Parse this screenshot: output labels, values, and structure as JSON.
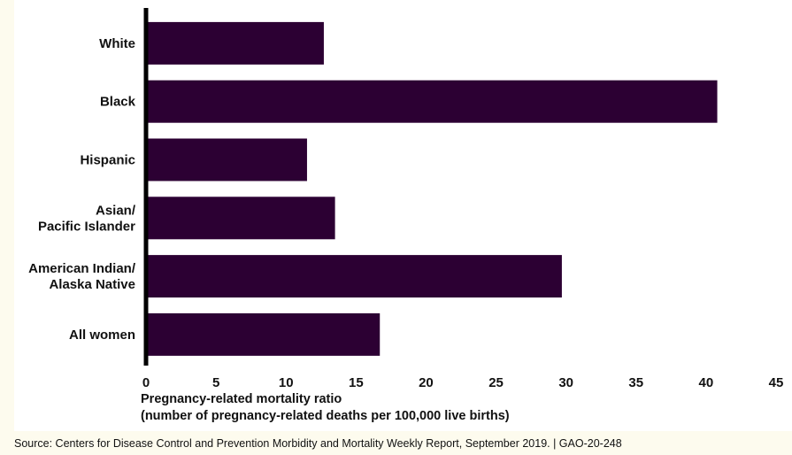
{
  "colors": {
    "bar": "#2c0033",
    "axis": "#000000",
    "background": "#ffffff",
    "outer_background": "#fdfbee"
  },
  "chart_data": {
    "type": "bar",
    "orientation": "horizontal",
    "categories": [
      [
        "White"
      ],
      [
        "Black"
      ],
      [
        "Hispanic"
      ],
      [
        "Asian/",
        "Pacific Islander"
      ],
      [
        "American Indian/",
        "Alaska Native"
      ],
      [
        "All women"
      ]
    ],
    "values": [
      12.7,
      40.8,
      11.5,
      13.5,
      29.7,
      16.7
    ],
    "xlim": [
      0,
      45
    ],
    "xticks": [
      0,
      5,
      10,
      15,
      20,
      25,
      30,
      35,
      40,
      45
    ],
    "xlabel_line1": "Pregnancy-related mortality ratio",
    "xlabel_line2": "(number of pregnancy-related deaths per 100,000 live births)",
    "grid": false,
    "legend": "none"
  },
  "source": "Source: Centers for Disease Control and Prevention Morbidity and Mortality Weekly Report, September 2019.  |  GAO-20-248"
}
